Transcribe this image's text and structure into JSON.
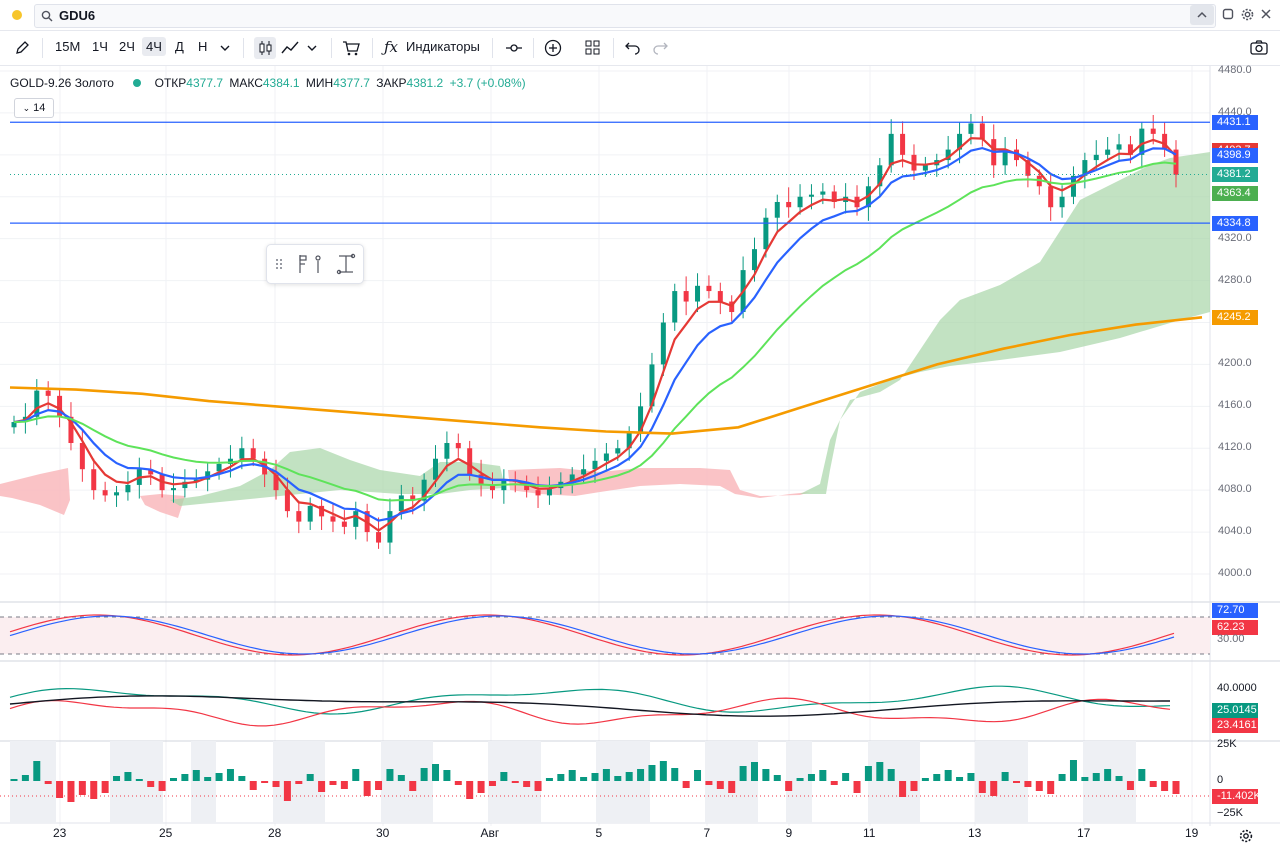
{
  "top": {
    "symbol": "GDU6"
  },
  "toolbar": {
    "intervals": [
      "15М",
      "1Ч",
      "2Ч",
      "4Ч",
      "Д",
      "Н"
    ],
    "selected_interval": "4Ч",
    "indicators_label": "Индикаторы"
  },
  "legend": {
    "title": "GOLD-9.26 Золото",
    "open_label": "ОТКР",
    "open": "4377.7",
    "high_label": "МАКС",
    "high": "4384.1",
    "low_label": "МИН",
    "low": "4377.7",
    "close_label": "ЗАКР",
    "close": "4381.2",
    "change": "+3.7 (+0.08%)",
    "period": "14"
  },
  "price_axis": {
    "ticks": [
      "4480.0",
      "4440.0",
      "4320.0",
      "4280.0",
      "4240.0",
      "4200.0",
      "4160.0",
      "4120.0",
      "4080.0",
      "4040.0",
      "4000.0"
    ],
    "labels": [
      {
        "text": "4431.1",
        "color": "#2962ff"
      },
      {
        "text": "4403.7",
        "color": "#e53935"
      },
      {
        "text": "4398.9",
        "color": "#2962ff"
      },
      {
        "text": "4381.2",
        "color": "#22ab94"
      },
      {
        "text": "4363.4",
        "color": "#4caf50"
      },
      {
        "text": "4334.8",
        "color": "#2962ff"
      },
      {
        "text": "4245.2",
        "color": "#f59b00"
      }
    ]
  },
  "stoch_axis": {
    "labels": [
      {
        "text": "72.70",
        "color": "#2962ff"
      },
      {
        "text": "62.23",
        "color": "#f23645"
      }
    ],
    "partial": "30.00"
  },
  "dmi_axis": {
    "tick": "40.0000",
    "labels": [
      {
        "text": "25.0145",
        "color": "#089981"
      },
      {
        "text": "23.4161",
        "color": "#f23645"
      }
    ]
  },
  "vol_axis": {
    "ticks": [
      "25K",
      "0",
      "−25K"
    ],
    "label": {
      "text": "-11.402K",
      "color": "#f23645"
    }
  },
  "time_axis": [
    "23",
    "25",
    "28",
    "30",
    "Авг",
    "5",
    "7",
    "9",
    "11",
    "13",
    "17",
    "19"
  ],
  "colors": {
    "up": "#089981",
    "down": "#f23645",
    "ema_red": "#e53935",
    "ema_blue": "#2962ff",
    "ema_green": "#5ee35a",
    "ema_orange": "#f59b00"
  }
}
